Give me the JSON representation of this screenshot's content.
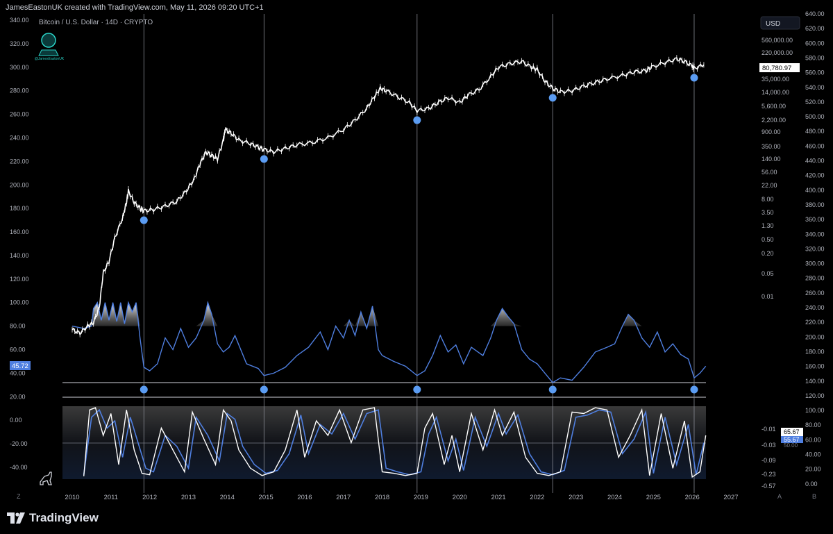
{
  "header": {
    "attribution": "JamesEastonUK created with TradingView.com, May 11, 2026 09:20 UTC+1",
    "symbol": "Bitcoin / U.S. Dollar · 14D · CRYPTO",
    "watermark": "@JamesEastonUK"
  },
  "currency_button": "USD",
  "footer": {
    "brand": "TradingView"
  },
  "corner_labels": {
    "left": "Z",
    "a": "A",
    "b": "B"
  },
  "colors": {
    "background": "#000000",
    "price": "#ffffff",
    "osc": "#4f7fe0",
    "marker": "#5b9cf2",
    "grid": "#2a2e39",
    "text": "#b2b5be"
  },
  "chart_data": {
    "type": "line",
    "x_ticks": [
      "2010",
      "2011",
      "2012",
      "2013",
      "2014",
      "2015",
      "2016",
      "2017",
      "2018",
      "2019",
      "2020",
      "2021",
      "2022",
      "2023",
      "2024",
      "2025",
      "2026",
      "2027"
    ],
    "x_range": [
      2009.8,
      2027.2
    ],
    "left_axis": [
      "340.00",
      "320.00",
      "300.00",
      "280.00",
      "260.00",
      "240.00",
      "220.00",
      "200.00",
      "180.00",
      "160.00",
      "140.00",
      "120.00",
      "100.00",
      "80.00",
      "60.00",
      "40.00",
      "20.00",
      "0.00",
      "-20.00",
      "-40.00"
    ],
    "left_axis_range": [
      -40,
      340
    ],
    "right_axis": [
      "640.00",
      "620.00",
      "600.00",
      "580.00",
      "560.00",
      "540.00",
      "520.00",
      "500.00",
      "480.00",
      "460.00",
      "440.00",
      "420.00",
      "400.00",
      "380.00",
      "360.00",
      "340.00",
      "320.00",
      "300.00",
      "280.00",
      "260.00",
      "240.00",
      "220.00",
      "200.00",
      "180.00",
      "160.00",
      "140.00",
      "120.00",
      "100.00",
      "80.00",
      "60.00",
      "40.00",
      "20.00",
      "0.00"
    ],
    "log_scale": [
      "560,000.00",
      "220,000.00",
      "35,000.00",
      "14,000.00",
      "5,600.00",
      "2,200.00",
      "900.00",
      "350.00",
      "140.00",
      "56.00",
      "22.00",
      "8.00",
      "3.50",
      "1.30",
      "0.50",
      "0.20",
      "0.05",
      "0.01"
    ],
    "stoch_scale": [
      "-0.01",
      "-0.03",
      "-0.09",
      "-0.23",
      "-0.57"
    ],
    "last_price": "80,780.97",
    "osc_last": "45.72",
    "stoch_k_last": "65.67",
    "stoch_d_last": "55.67",
    "stoch_hidden": "50.00",
    "cycle_lines": [
      2011.85,
      2014.95,
      2018.9,
      2022.4,
      2026.05
    ],
    "price_series": {
      "x": [
        2010.0,
        2010.2,
        2010.4,
        2010.55,
        2010.7,
        2010.8,
        2010.95,
        2011.1,
        2011.3,
        2011.4,
        2011.45,
        2011.6,
        2011.75,
        2011.85,
        2012.1,
        2012.4,
        2012.7,
        2012.95,
        2013.15,
        2013.3,
        2013.45,
        2013.6,
        2013.75,
        2013.9,
        2013.95,
        2014.1,
        2014.3,
        2014.6,
        2014.8,
        2014.95,
        2015.2,
        2015.5,
        2015.8,
        2016.2,
        2016.6,
        2017.0,
        2017.3,
        2017.6,
        2017.8,
        2017.95,
        2018.1,
        2018.4,
        2018.7,
        2018.9,
        2019.2,
        2019.45,
        2019.7,
        2020.0,
        2020.2,
        2020.5,
        2020.8,
        2021.0,
        2021.3,
        2021.6,
        2021.85,
        2022.0,
        2022.2,
        2022.4,
        2022.6,
        2022.9,
        2023.2,
        2023.5,
        2023.8,
        2024.2,
        2024.5,
        2024.8,
        2024.95,
        2025.3,
        2025.6,
        2025.8,
        2026.0,
        2026.05,
        2026.3
      ],
      "y": [
        77,
        74,
        80,
        83,
        96,
        125,
        135,
        155,
        172,
        185,
        195,
        185,
        180,
        178,
        179,
        182,
        186,
        195,
        205,
        218,
        228,
        225,
        222,
        238,
        247,
        244,
        238,
        235,
        232,
        230,
        228,
        231,
        234,
        236,
        240,
        247,
        255,
        265,
        275,
        282,
        280,
        275,
        270,
        263,
        265,
        270,
        274,
        270,
        276,
        281,
        292,
        300,
        303,
        305,
        300,
        298,
        288,
        282,
        279,
        280,
        284,
        287,
        290,
        293,
        296,
        297,
        300,
        304,
        307,
        305,
        301,
        299,
        302
      ]
    },
    "osc_series": {
      "x": [
        2010.0,
        2010.3,
        2010.5,
        2010.55,
        2010.65,
        2010.75,
        2010.85,
        2010.95,
        2011.05,
        2011.15,
        2011.25,
        2011.35,
        2011.45,
        2011.55,
        2011.65,
        2011.75,
        2011.85,
        2012.0,
        2012.2,
        2012.4,
        2012.6,
        2012.8,
        2013.0,
        2013.2,
        2013.4,
        2013.5,
        2013.6,
        2013.75,
        2013.9,
        2014.05,
        2014.2,
        2014.5,
        2014.8,
        2014.95,
        2015.2,
        2015.5,
        2015.8,
        2016.1,
        2016.4,
        2016.6,
        2016.8,
        2017.0,
        2017.15,
        2017.3,
        2017.45,
        2017.6,
        2017.75,
        2017.9,
        2018.0,
        2018.3,
        2018.6,
        2018.9,
        2019.1,
        2019.3,
        2019.5,
        2019.7,
        2019.9,
        2020.1,
        2020.3,
        2020.6,
        2020.8,
        2020.95,
        2021.1,
        2021.25,
        2021.4,
        2021.6,
        2021.8,
        2022.0,
        2022.2,
        2022.4,
        2022.6,
        2022.9,
        2023.2,
        2023.5,
        2023.8,
        2024.0,
        2024.2,
        2024.35,
        2024.5,
        2024.7,
        2024.9,
        2025.1,
        2025.3,
        2025.5,
        2025.7,
        2025.9,
        2026.05,
        2026.2,
        2026.35
      ],
      "y": [
        80,
        78,
        80,
        95,
        100,
        85,
        100,
        85,
        100,
        84,
        100,
        82,
        100,
        92,
        100,
        70,
        45,
        42,
        48,
        70,
        60,
        78,
        62,
        70,
        85,
        100,
        90,
        65,
        58,
        62,
        72,
        48,
        44,
        38,
        40,
        45,
        55,
        62,
        75,
        60,
        80,
        70,
        85,
        72,
        92,
        78,
        97,
        60,
        55,
        50,
        46,
        38,
        42,
        55,
        72,
        58,
        64,
        48,
        62,
        55,
        70,
        85,
        95,
        88,
        82,
        60,
        52,
        48,
        40,
        32,
        36,
        34,
        45,
        58,
        62,
        65,
        80,
        90,
        85,
        70,
        62,
        75,
        58,
        65,
        56,
        52,
        36,
        40,
        46
      ]
    },
    "stoch_k": {
      "x": [
        2010.3,
        2010.45,
        2010.6,
        2010.8,
        2011.0,
        2011.2,
        2011.4,
        2011.6,
        2011.8,
        2012.0,
        2012.3,
        2012.6,
        2012.9,
        2013.1,
        2013.4,
        2013.7,
        2013.9,
        2014.1,
        2014.3,
        2014.6,
        2014.9,
        2015.2,
        2015.5,
        2015.8,
        2016.0,
        2016.3,
        2016.6,
        2016.9,
        2017.2,
        2017.5,
        2017.8,
        2018.0,
        2018.3,
        2018.6,
        2018.9,
        2019.1,
        2019.3,
        2019.6,
        2019.8,
        2020.0,
        2020.3,
        2020.6,
        2020.9,
        2021.1,
        2021.4,
        2021.7,
        2022.0,
        2022.3,
        2022.6,
        2022.9,
        2023.2,
        2023.5,
        2023.8,
        2024.1,
        2024.4,
        2024.7,
        2024.9,
        2025.2,
        2025.5,
        2025.8,
        2026.0,
        2026.2,
        2026.35
      ],
      "y": [
        4,
        95,
        98,
        60,
        90,
        20,
        95,
        40,
        8,
        6,
        70,
        40,
        10,
        92,
        55,
        20,
        95,
        80,
        40,
        15,
        5,
        10,
        40,
        95,
        30,
        80,
        60,
        95,
        50,
        95,
        98,
        10,
        8,
        5,
        8,
        70,
        90,
        20,
        60,
        10,
        90,
        40,
        95,
        60,
        92,
        30,
        8,
        5,
        10,
        92,
        90,
        98,
        95,
        30,
        60,
        95,
        5,
        90,
        15,
        80,
        3,
        10,
        60
      ]
    },
    "stoch_d": {
      "x": [
        2010.3,
        2010.5,
        2010.7,
        2010.9,
        2011.1,
        2011.3,
        2011.5,
        2011.7,
        2011.9,
        2012.1,
        2012.4,
        2012.7,
        2013.0,
        2013.2,
        2013.5,
        2013.8,
        2014.0,
        2014.2,
        2014.4,
        2014.7,
        2015.0,
        2015.3,
        2015.6,
        2015.9,
        2016.1,
        2016.4,
        2016.7,
        2017.0,
        2017.3,
        2017.6,
        2017.9,
        2018.1,
        2018.4,
        2018.7,
        2019.0,
        2019.2,
        2019.4,
        2019.7,
        2019.9,
        2020.1,
        2020.4,
        2020.7,
        2021.0,
        2021.2,
        2021.5,
        2021.8,
        2022.1,
        2022.4,
        2022.7,
        2023.0,
        2023.3,
        2023.6,
        2023.9,
        2024.2,
        2024.5,
        2024.8,
        2025.0,
        2025.3,
        2025.6,
        2025.9,
        2026.1,
        2026.3
      ],
      "y": [
        6,
        85,
        95,
        70,
        80,
        30,
        85,
        50,
        15,
        10,
        60,
        45,
        15,
        85,
        60,
        25,
        90,
        82,
        45,
        20,
        8,
        12,
        35,
        88,
        35,
        75,
        62,
        90,
        55,
        90,
        95,
        15,
        10,
        6,
        10,
        62,
        85,
        25,
        55,
        12,
        85,
        45,
        90,
        62,
        88,
        35,
        10,
        6,
        12,
        85,
        88,
        95,
        92,
        35,
        55,
        92,
        8,
        85,
        20,
        75,
        6,
        50
      ]
    }
  }
}
